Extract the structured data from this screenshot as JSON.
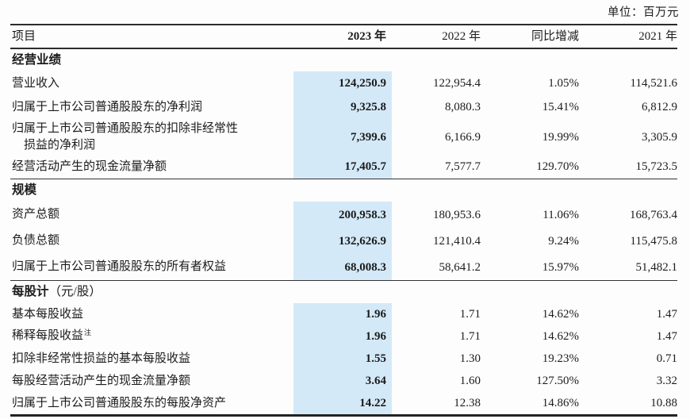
{
  "unit_label": "单位：百万元",
  "colors": {
    "highlight": "#d4e9f8",
    "rule": "#2c2c2c"
  },
  "table": {
    "columns": [
      "项目",
      "2023 年",
      "2022 年",
      "同比增减",
      "2021 年"
    ],
    "sections": [
      {
        "title": "经营业绩",
        "title_suffix": "",
        "rows": [
          {
            "label": "营业收入",
            "y2023": "124,250.9",
            "y2022": "122,954.4",
            "yoy": "1.05%",
            "y2021": "114,521.6"
          },
          {
            "label": "归属于上市公司普通股股东的净利润",
            "y2023": "9,325.8",
            "y2022": "8,080.3",
            "yoy": "15.41%",
            "y2021": "6,812.9"
          },
          {
            "label": "归属于上市公司普通股股东的扣除非经常性\n　损益的净利润",
            "y2023": "7,399.6",
            "y2022": "6,166.9",
            "yoy": "19.99%",
            "y2021": "3,305.9"
          },
          {
            "label": "经营活动产生的现金流量净额",
            "y2023": "17,405.7",
            "y2022": "7,577.7",
            "yoy": "129.70%",
            "y2021": "15,723.5"
          }
        ]
      },
      {
        "title": "规模",
        "title_suffix": "",
        "rows": [
          {
            "label": "资产总额",
            "y2023": "200,958.3",
            "y2022": "180,953.6",
            "yoy": "11.06%",
            "y2021": "168,763.4"
          },
          {
            "label": "负债总额",
            "y2023": "132,626.9",
            "y2022": "121,410.4",
            "yoy": "9.24%",
            "y2021": "115,475.8"
          },
          {
            "label": "归属于上市公司普通股股东的所有者权益",
            "y2023": "68,008.3",
            "y2022": "58,641.2",
            "yoy": "15.97%",
            "y2021": "51,482.1"
          }
        ]
      },
      {
        "title": "每股计",
        "title_suffix": "（元/股）",
        "rows": [
          {
            "label": "基本每股收益",
            "y2023": "1.96",
            "y2022": "1.71",
            "yoy": "14.62%",
            "y2021": "1.47"
          },
          {
            "label": "稀释每股收益",
            "note": "注",
            "y2023": "1.96",
            "y2022": "1.71",
            "yoy": "14.62%",
            "y2021": "1.47"
          },
          {
            "label": "扣除非经常性损益的基本每股收益",
            "y2023": "1.55",
            "y2022": "1.30",
            "yoy": "19.23%",
            "y2021": "0.71"
          },
          {
            "label": "每股经营活动产生的现金流量净额",
            "y2023": "3.64",
            "y2022": "1.60",
            "yoy": "127.50%",
            "y2021": "3.32"
          },
          {
            "label": "归属于上市公司普通股股东的每股净资产",
            "y2023": "14.22",
            "y2022": "12.38",
            "yoy": "14.86%",
            "y2021": "10.88"
          }
        ]
      }
    ]
  }
}
